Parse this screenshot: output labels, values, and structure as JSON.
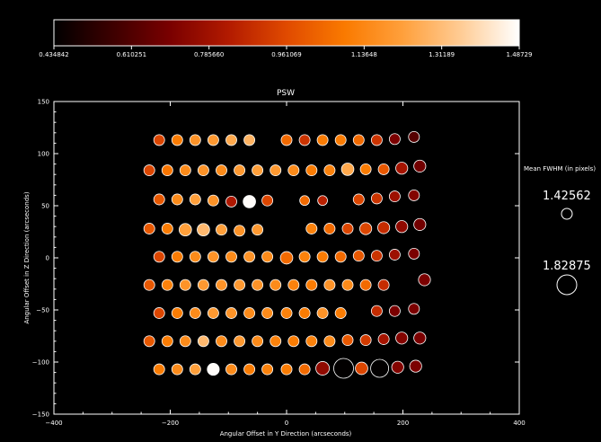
{
  "chart_data": {
    "type": "scatter",
    "title": "PSW",
    "xlabel": "Angular Offset in Y Direction (arcseconds)",
    "ylabel": "Angular Offset in Z Direction (arcseconds)",
    "xlim": [
      -400,
      400
    ],
    "ylim": [
      -150,
      150
    ],
    "x_ticks": [
      -400,
      -200,
      0,
      200,
      400
    ],
    "y_ticks": [
      -150,
      -100,
      -50,
      0,
      50,
      100,
      150
    ],
    "grid": false,
    "colorbar": {
      "range": [
        0.434842,
        1.48729
      ],
      "tick_labels": [
        "0.434842",
        "0.610251",
        "0.785660",
        "0.961069",
        "1.13648",
        "1.31189",
        "1.48729"
      ],
      "colormap": [
        "#000000",
        "#3c0000",
        "#7a0000",
        "#b21a00",
        "#e04a00",
        "#fa7a00",
        "#ffa03c",
        "#ffcc95",
        "#ffffff"
      ]
    },
    "legend": {
      "title": "Mean FWHM (in pixels)",
      "entries": [
        {
          "label": "1.42562",
          "value": 1.42562
        },
        {
          "label": "1.82875",
          "value": 1.82875
        }
      ]
    },
    "points": [
      {
        "x": -219,
        "y": 113,
        "c": 0.95,
        "s": 1.43
      },
      {
        "x": -188,
        "y": 113,
        "c": 1.1,
        "s": 1.43
      },
      {
        "x": -157,
        "y": 113,
        "c": 1.18,
        "s": 1.43
      },
      {
        "x": -126,
        "y": 113,
        "c": 1.2,
        "s": 1.43
      },
      {
        "x": -95,
        "y": 113,
        "c": 1.25,
        "s": 1.43
      },
      {
        "x": -64,
        "y": 113,
        "c": 1.28,
        "s": 1.43
      },
      {
        "x": 0,
        "y": 113,
        "c": 1.05,
        "s": 1.43
      },
      {
        "x": 31,
        "y": 113,
        "c": 0.9,
        "s": 1.43
      },
      {
        "x": 62,
        "y": 113,
        "c": 1.1,
        "s": 1.43
      },
      {
        "x": 93,
        "y": 113,
        "c": 1.1,
        "s": 1.43
      },
      {
        "x": 124,
        "y": 113,
        "c": 1.05,
        "s": 1.43
      },
      {
        "x": 155,
        "y": 113,
        "c": 0.9,
        "s": 1.43
      },
      {
        "x": 186,
        "y": 114,
        "c": 0.7,
        "s": 1.43
      },
      {
        "x": 219,
        "y": 116,
        "c": 0.62,
        "s": 1.43
      },
      {
        "x": -236,
        "y": 84,
        "c": 0.95,
        "s": 1.43
      },
      {
        "x": -205,
        "y": 84,
        "c": 1.08,
        "s": 1.43
      },
      {
        "x": -174,
        "y": 84,
        "c": 1.15,
        "s": 1.43
      },
      {
        "x": -143,
        "y": 84,
        "c": 1.18,
        "s": 1.43
      },
      {
        "x": -112,
        "y": 84,
        "c": 1.15,
        "s": 1.43
      },
      {
        "x": -81,
        "y": 84,
        "c": 1.2,
        "s": 1.43
      },
      {
        "x": -50,
        "y": 84,
        "c": 1.22,
        "s": 1.43
      },
      {
        "x": -19,
        "y": 84,
        "c": 1.2,
        "s": 1.43
      },
      {
        "x": 12,
        "y": 84,
        "c": 1.15,
        "s": 1.43
      },
      {
        "x": 43,
        "y": 84,
        "c": 1.1,
        "s": 1.43
      },
      {
        "x": 74,
        "y": 84,
        "c": 1.12,
        "s": 1.43
      },
      {
        "x": 105,
        "y": 85,
        "c": 1.25,
        "s": 1.5
      },
      {
        "x": 136,
        "y": 85,
        "c": 1.1,
        "s": 1.43
      },
      {
        "x": 167,
        "y": 85,
        "c": 1.0,
        "s": 1.43
      },
      {
        "x": 198,
        "y": 86,
        "c": 0.8,
        "s": 1.48
      },
      {
        "x": 229,
        "y": 88,
        "c": 0.68,
        "s": 1.48
      },
      {
        "x": -219,
        "y": 56,
        "c": 1.0,
        "s": 1.43
      },
      {
        "x": -188,
        "y": 56,
        "c": 1.15,
        "s": 1.43
      },
      {
        "x": -157,
        "y": 56,
        "c": 1.22,
        "s": 1.43
      },
      {
        "x": -126,
        "y": 55,
        "c": 1.18,
        "s": 1.43
      },
      {
        "x": -95,
        "y": 54,
        "c": 0.82,
        "s": 1.43
      },
      {
        "x": -64,
        "y": 54,
        "c": 1.48,
        "s": 1.5
      },
      {
        "x": -33,
        "y": 55,
        "c": 0.95,
        "s": 1.43
      },
      {
        "x": 31,
        "y": 55,
        "c": 1.05,
        "s": 1.38
      },
      {
        "x": 62,
        "y": 55,
        "c": 0.85,
        "s": 1.38
      },
      {
        "x": 124,
        "y": 56,
        "c": 0.95,
        "s": 1.43
      },
      {
        "x": 155,
        "y": 57,
        "c": 0.9,
        "s": 1.43
      },
      {
        "x": 186,
        "y": 59,
        "c": 0.78,
        "s": 1.43
      },
      {
        "x": 219,
        "y": 60,
        "c": 0.72,
        "s": 1.43
      },
      {
        "x": -236,
        "y": 28,
        "c": 1.0,
        "s": 1.43
      },
      {
        "x": -205,
        "y": 28,
        "c": 1.1,
        "s": 1.43
      },
      {
        "x": -174,
        "y": 27,
        "c": 1.22,
        "s": 1.5
      },
      {
        "x": -143,
        "y": 27,
        "c": 1.3,
        "s": 1.5
      },
      {
        "x": -112,
        "y": 27,
        "c": 1.22,
        "s": 1.43
      },
      {
        "x": -81,
        "y": 26,
        "c": 1.18,
        "s": 1.43
      },
      {
        "x": -50,
        "y": 27,
        "c": 1.2,
        "s": 1.43
      },
      {
        "x": 43,
        "y": 28,
        "c": 1.12,
        "s": 1.43
      },
      {
        "x": 74,
        "y": 28,
        "c": 1.05,
        "s": 1.43
      },
      {
        "x": 105,
        "y": 28,
        "c": 0.95,
        "s": 1.43
      },
      {
        "x": 136,
        "y": 28,
        "c": 0.95,
        "s": 1.48
      },
      {
        "x": 167,
        "y": 29,
        "c": 0.88,
        "s": 1.48
      },
      {
        "x": 198,
        "y": 30,
        "c": 0.75,
        "s": 1.48
      },
      {
        "x": 229,
        "y": 32,
        "c": 0.68,
        "s": 1.48
      },
      {
        "x": -219,
        "y": 1,
        "c": 0.95,
        "s": 1.43
      },
      {
        "x": -188,
        "y": 1,
        "c": 1.1,
        "s": 1.43
      },
      {
        "x": -157,
        "y": 1,
        "c": 1.15,
        "s": 1.43
      },
      {
        "x": -126,
        "y": 1,
        "c": 1.18,
        "s": 1.43
      },
      {
        "x": -95,
        "y": 1,
        "c": 1.15,
        "s": 1.43
      },
      {
        "x": -64,
        "y": 1,
        "c": 1.18,
        "s": 1.43
      },
      {
        "x": -33,
        "y": 1,
        "c": 1.15,
        "s": 1.43
      },
      {
        "x": 0,
        "y": 0,
        "c": 1.05,
        "s": 1.5
      },
      {
        "x": 31,
        "y": 1,
        "c": 1.12,
        "s": 1.43
      },
      {
        "x": 62,
        "y": 1,
        "c": 1.1,
        "s": 1.43
      },
      {
        "x": 93,
        "y": 1,
        "c": 1.05,
        "s": 1.43
      },
      {
        "x": 124,
        "y": 2,
        "c": 1.0,
        "s": 1.43
      },
      {
        "x": 155,
        "y": 2,
        "c": 0.9,
        "s": 1.43
      },
      {
        "x": 186,
        "y": 3,
        "c": 0.78,
        "s": 1.43
      },
      {
        "x": 219,
        "y": 4,
        "c": 0.7,
        "s": 1.43
      },
      {
        "x": -236,
        "y": -26,
        "c": 1.0,
        "s": 1.43
      },
      {
        "x": -205,
        "y": -26,
        "c": 1.12,
        "s": 1.43
      },
      {
        "x": -174,
        "y": -26,
        "c": 1.18,
        "s": 1.43
      },
      {
        "x": -143,
        "y": -26,
        "c": 1.2,
        "s": 1.43
      },
      {
        "x": -112,
        "y": -26,
        "c": 1.18,
        "s": 1.43
      },
      {
        "x": -81,
        "y": -26,
        "c": 1.2,
        "s": 1.43
      },
      {
        "x": -50,
        "y": -26,
        "c": 1.18,
        "s": 1.43
      },
      {
        "x": -19,
        "y": -26,
        "c": 1.15,
        "s": 1.43
      },
      {
        "x": 12,
        "y": -26,
        "c": 1.12,
        "s": 1.43
      },
      {
        "x": 43,
        "y": -26,
        "c": 1.1,
        "s": 1.43
      },
      {
        "x": 74,
        "y": -26,
        "c": 1.18,
        "s": 1.43
      },
      {
        "x": 105,
        "y": -26,
        "c": 1.15,
        "s": 1.43
      },
      {
        "x": 136,
        "y": -26,
        "c": 1.05,
        "s": 1.43
      },
      {
        "x": 167,
        "y": -26,
        "c": 0.88,
        "s": 1.43
      },
      {
        "x": 237,
        "y": -21,
        "c": 0.7,
        "s": 1.48
      },
      {
        "x": -219,
        "y": -53,
        "c": 0.95,
        "s": 1.43
      },
      {
        "x": -188,
        "y": -53,
        "c": 1.1,
        "s": 1.43
      },
      {
        "x": -157,
        "y": -53,
        "c": 1.15,
        "s": 1.43
      },
      {
        "x": -126,
        "y": -53,
        "c": 1.2,
        "s": 1.43
      },
      {
        "x": -95,
        "y": -53,
        "c": 1.18,
        "s": 1.43
      },
      {
        "x": -64,
        "y": -53,
        "c": 1.15,
        "s": 1.43
      },
      {
        "x": -33,
        "y": -53,
        "c": 1.15,
        "s": 1.43
      },
      {
        "x": 0,
        "y": -53,
        "c": 1.12,
        "s": 1.43
      },
      {
        "x": 31,
        "y": -53,
        "c": 1.1,
        "s": 1.43
      },
      {
        "x": 62,
        "y": -53,
        "c": 1.18,
        "s": 1.43
      },
      {
        "x": 93,
        "y": -53,
        "c": 1.1,
        "s": 1.43
      },
      {
        "x": 155,
        "y": -51,
        "c": 0.88,
        "s": 1.43
      },
      {
        "x": 186,
        "y": -51,
        "c": 0.7,
        "s": 1.43
      },
      {
        "x": 219,
        "y": -49,
        "c": 0.7,
        "s": 1.43
      },
      {
        "x": -236,
        "y": -80,
        "c": 1.0,
        "s": 1.43
      },
      {
        "x": -205,
        "y": -80,
        "c": 1.1,
        "s": 1.43
      },
      {
        "x": -174,
        "y": -80,
        "c": 1.15,
        "s": 1.43
      },
      {
        "x": -143,
        "y": -80,
        "c": 1.3,
        "s": 1.43
      },
      {
        "x": -112,
        "y": -80,
        "c": 1.15,
        "s": 1.43
      },
      {
        "x": -81,
        "y": -80,
        "c": 1.2,
        "s": 1.43
      },
      {
        "x": -50,
        "y": -80,
        "c": 1.15,
        "s": 1.43
      },
      {
        "x": -19,
        "y": -80,
        "c": 1.12,
        "s": 1.43
      },
      {
        "x": 12,
        "y": -80,
        "c": 1.1,
        "s": 1.43
      },
      {
        "x": 43,
        "y": -80,
        "c": 1.12,
        "s": 1.43
      },
      {
        "x": 74,
        "y": -80,
        "c": 1.15,
        "s": 1.43
      },
      {
        "x": 105,
        "y": -79,
        "c": 1.0,
        "s": 1.43
      },
      {
        "x": 136,
        "y": -79,
        "c": 0.92,
        "s": 1.43
      },
      {
        "x": 167,
        "y": -78,
        "c": 0.8,
        "s": 1.43
      },
      {
        "x": 198,
        "y": -77,
        "c": 0.72,
        "s": 1.48
      },
      {
        "x": 229,
        "y": -77,
        "c": 0.7,
        "s": 1.48
      },
      {
        "x": -219,
        "y": -107,
        "c": 1.1,
        "s": 1.43
      },
      {
        "x": -188,
        "y": -107,
        "c": 1.15,
        "s": 1.43
      },
      {
        "x": -157,
        "y": -107,
        "c": 1.22,
        "s": 1.43
      },
      {
        "x": -126,
        "y": -107,
        "c": 1.48,
        "s": 1.48
      },
      {
        "x": -95,
        "y": -107,
        "c": 1.15,
        "s": 1.43
      },
      {
        "x": -64,
        "y": -107,
        "c": 1.1,
        "s": 1.43
      },
      {
        "x": -33,
        "y": -107,
        "c": 1.12,
        "s": 1.43
      },
      {
        "x": 0,
        "y": -107,
        "c": 1.1,
        "s": 1.43
      },
      {
        "x": 31,
        "y": -107,
        "c": 1.05,
        "s": 1.43
      },
      {
        "x": 62,
        "y": -106,
        "c": 0.75,
        "s": 1.55
      },
      {
        "x": 98,
        "y": -106,
        "c": 0.44,
        "s": 1.83
      },
      {
        "x": 129,
        "y": -106,
        "c": 0.95,
        "s": 1.5
      },
      {
        "x": 160,
        "y": -106,
        "c": 0.44,
        "s": 1.75
      },
      {
        "x": 191,
        "y": -105,
        "c": 0.72,
        "s": 1.48
      },
      {
        "x": 222,
        "y": -104,
        "c": 0.7,
        "s": 1.48
      }
    ]
  }
}
